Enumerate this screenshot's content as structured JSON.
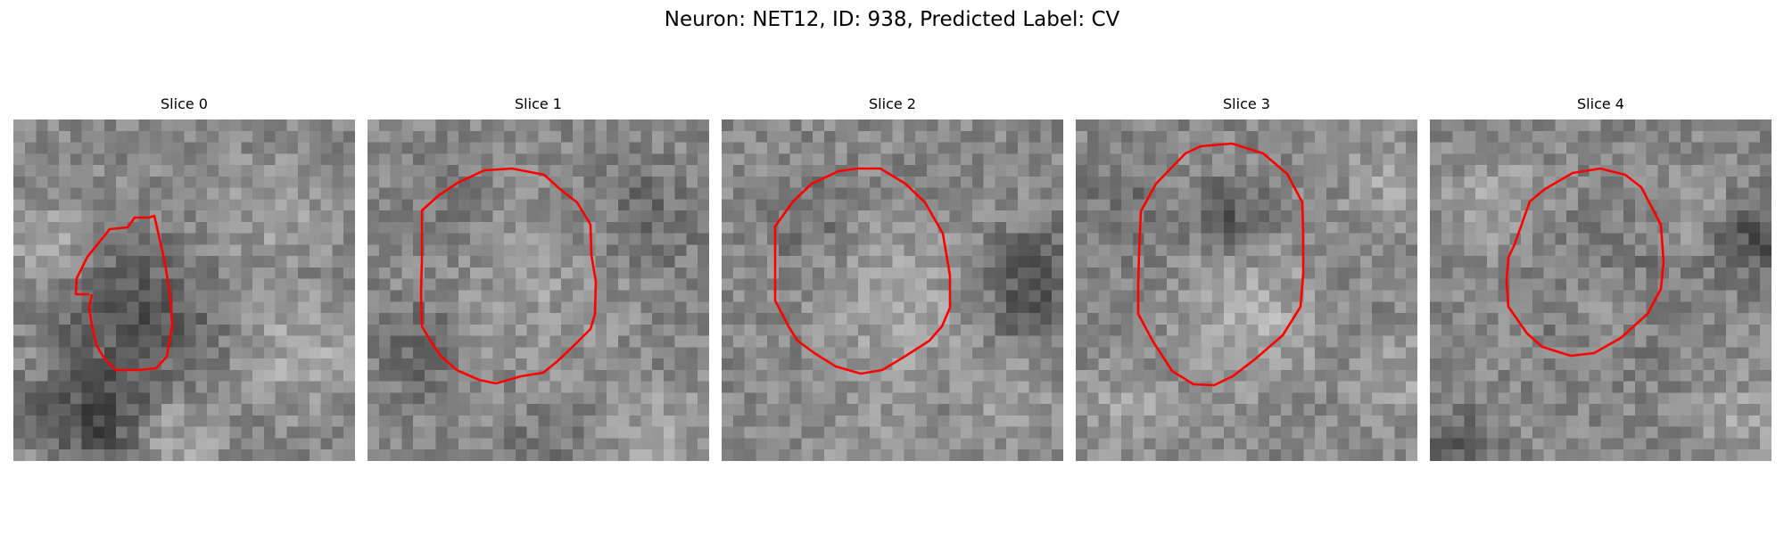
{
  "figure": {
    "title": "Neuron: NET12, ID: 938, Predicted Label: CV"
  },
  "panels": [
    {
      "title": "Slice 0"
    },
    {
      "title": "Slice 1"
    },
    {
      "title": "Slice 2"
    },
    {
      "title": "Slice 3"
    },
    {
      "title": "Slice 4"
    }
  ],
  "style": {
    "contour_color": "#ff0000",
    "colormap": "grayscale"
  }
}
